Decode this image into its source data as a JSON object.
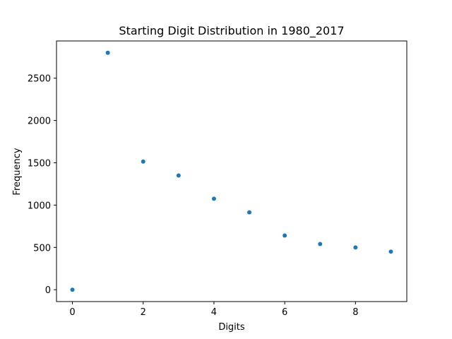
{
  "chart_data": {
    "type": "scatter",
    "title": "Starting Digit Distribution in 1980_2017",
    "xlabel": "Digits",
    "ylabel": "Frequency",
    "x": [
      0,
      1,
      2,
      3,
      4,
      5,
      6,
      7,
      8,
      9
    ],
    "y": [
      0,
      2800,
      1515,
      1350,
      1075,
      915,
      640,
      540,
      500,
      450
    ],
    "xlim": [
      -0.45,
      9.45
    ],
    "ylim": [
      -140,
      2940
    ],
    "xticks": [
      0,
      2,
      4,
      6,
      8
    ],
    "yticks": [
      0,
      500,
      1000,
      1500,
      2000,
      2500
    ],
    "grid": false,
    "marker_color": "#1f77b4"
  }
}
